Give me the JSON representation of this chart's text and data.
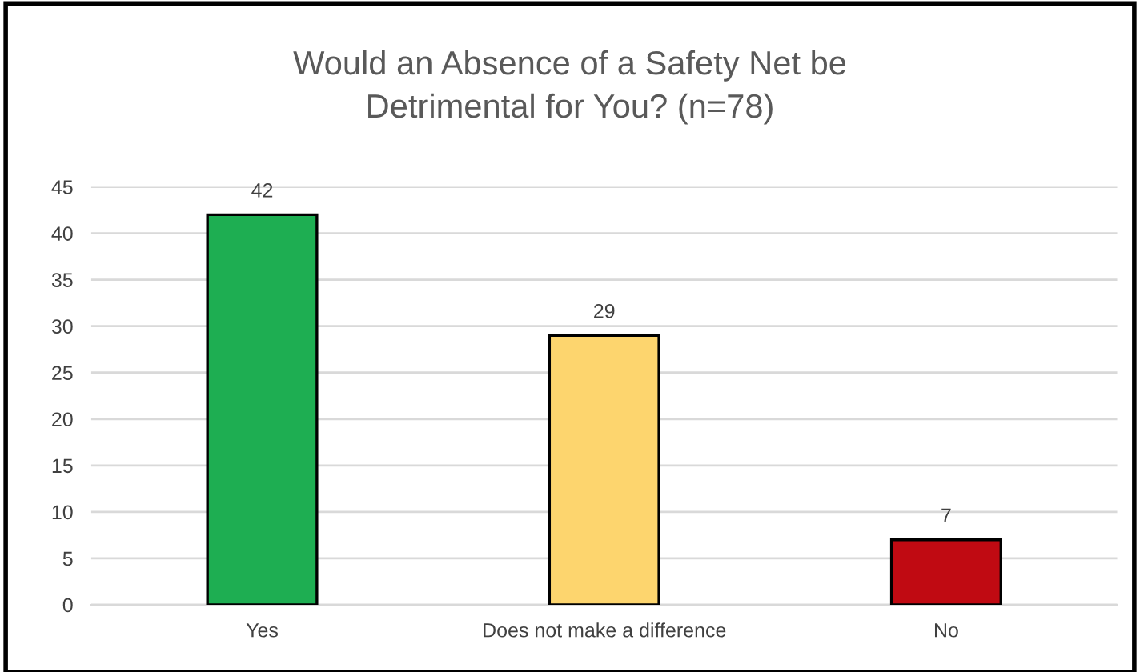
{
  "chart_data": {
    "type": "bar",
    "title": "Would an Absence of a Safety Net be\nDetrimental for You? (n=78)",
    "categories": [
      "Yes",
      "Does not make a difference",
      "No"
    ],
    "values": [
      42,
      29,
      7
    ],
    "colors": [
      "#1eae52",
      "#fdd56e",
      "#c00a12"
    ],
    "ylim": [
      0,
      45
    ],
    "yticks": [
      0,
      5,
      10,
      15,
      20,
      25,
      30,
      35,
      40,
      45
    ],
    "grid": "y",
    "data_labels": true,
    "legend": false
  }
}
